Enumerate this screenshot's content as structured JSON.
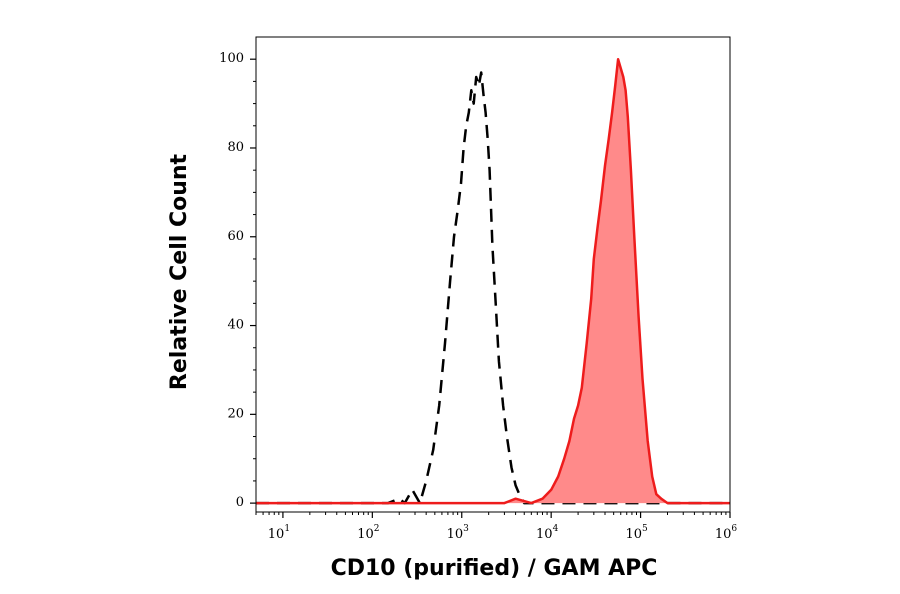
{
  "chart_data": {
    "type": "area",
    "xscale": "log",
    "xlim": [
      5,
      1000000
    ],
    "ylim": [
      -2,
      105
    ],
    "xlabel": "CD10 (purified) / GAM APC",
    "ylabel": "Relative Cell Count",
    "x_ticks": [
      {
        "base": "10",
        "exp": "1",
        "value": 10
      },
      {
        "base": "10",
        "exp": "2",
        "value": 100
      },
      {
        "base": "10",
        "exp": "3",
        "value": 1000
      },
      {
        "base": "10",
        "exp": "4",
        "value": 10000
      },
      {
        "base": "10",
        "exp": "5",
        "value": 100000
      },
      {
        "base": "10",
        "exp": "6",
        "value": 1000000
      }
    ],
    "y_ticks": [
      "0",
      "20",
      "40",
      "60",
      "80",
      "100"
    ],
    "series": [
      {
        "role": "control",
        "style": "dashed",
        "color": "#000000",
        "x": [
          5,
          150,
          200,
          230,
          280,
          340,
          400,
          480,
          560,
          650,
          740,
          820,
          900,
          980,
          1050,
          1120,
          1200,
          1280,
          1360,
          1450,
          1550,
          1650,
          1750,
          1850,
          1950,
          2050,
          2200,
          2400,
          2600,
          2900,
          3200,
          3600,
          4000,
          4400,
          5000,
          1000000
        ],
        "y": [
          0,
          0,
          1,
          0,
          3,
          0,
          5,
          12,
          22,
          36,
          50,
          60,
          66,
          72,
          80,
          85,
          88,
          93,
          90,
          96,
          94,
          97,
          92,
          88,
          82,
          75,
          58,
          45,
          32,
          22,
          15,
          8,
          4,
          2,
          0,
          0
        ]
      },
      {
        "role": "stained",
        "style": "filled",
        "color": "#ee1c1c",
        "fill": "#ff8a8a",
        "x": [
          5,
          3000,
          4000,
          6000,
          8000,
          10000,
          12000,
          14000,
          16000,
          18000,
          20000,
          22000,
          25000,
          28000,
          30000,
          33000,
          36000,
          40000,
          44000,
          48000,
          52000,
          56000,
          60000,
          64000,
          68000,
          72000,
          78000,
          85000,
          95000,
          105000,
          120000,
          135000,
          150000,
          170000,
          200000,
          1000000
        ],
        "y": [
          0,
          0,
          1,
          0,
          1,
          3,
          6,
          10,
          14,
          19,
          22,
          26,
          36,
          46,
          55,
          62,
          68,
          76,
          82,
          88,
          94,
          100,
          98,
          96,
          93,
          87,
          75,
          60,
          42,
          28,
          14,
          6,
          2,
          1,
          0,
          0
        ]
      }
    ]
  }
}
